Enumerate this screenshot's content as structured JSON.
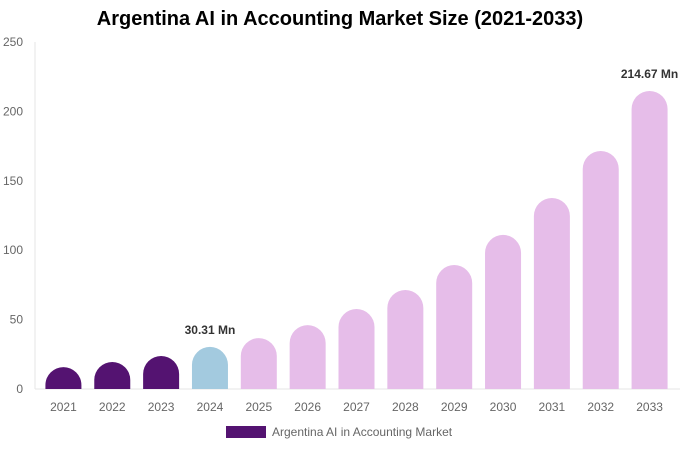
{
  "chart_data": {
    "type": "bar",
    "title": "Argentina AI in Accounting Market Size (2021-2033)",
    "categories": [
      "2021",
      "2022",
      "2023",
      "2024",
      "2025",
      "2026",
      "2027",
      "2028",
      "2029",
      "2030",
      "2031",
      "2032",
      "2033"
    ],
    "series": [
      {
        "name": "Argentina AI in Accounting Market",
        "values": [
          15.8,
          19.5,
          23.8,
          30.31,
          36.7,
          46.0,
          57.6,
          71.3,
          89.3,
          111.0,
          137.6,
          171.5,
          214.67
        ]
      }
    ],
    "data_labels": [
      {
        "category": "2024",
        "text": "30.31 Mn"
      },
      {
        "category": "2033",
        "text": "214.67 Mn"
      }
    ],
    "ylim": [
      0,
      250
    ],
    "yticks": [
      0,
      50,
      100,
      150,
      200,
      250
    ],
    "xlabel": "",
    "ylabel": "",
    "grid": false,
    "legend": "bottom",
    "colors": {
      "historical": "#541371",
      "base_year": "#a3cadf",
      "forecast": "#e6bde9"
    }
  }
}
